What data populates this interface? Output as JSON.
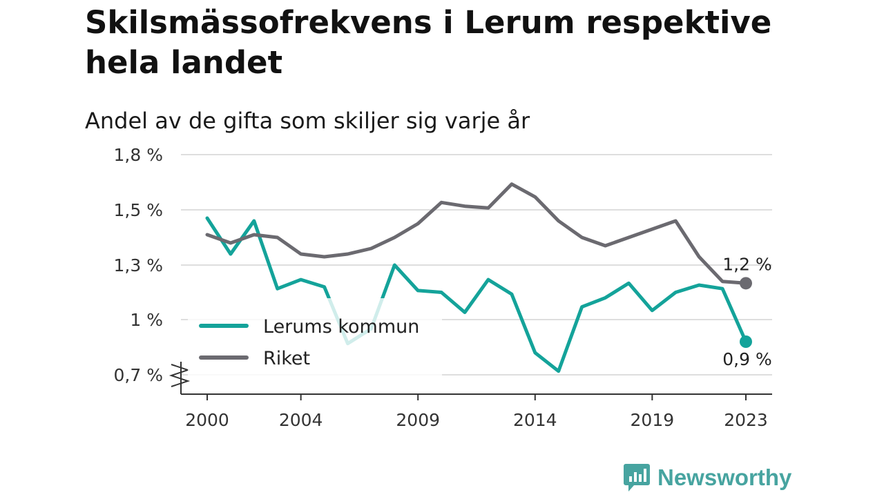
{
  "title": "Skilsmässofrekvens i Lerum respektive hela landet",
  "subtitle": "Andel av de gifta som skiljer sig varje år",
  "brand": {
    "name": "Newsworthy",
    "icon": "newsworthy-logo-icon"
  },
  "colors": {
    "lerum": "#14a39a",
    "riket": "#6b6a70",
    "grid": "#dedede",
    "axis": "#333333",
    "brand": "#47a4a0"
  },
  "chart_data": {
    "type": "line",
    "x": [
      2000,
      2001,
      2002,
      2003,
      2004,
      2005,
      2006,
      2007,
      2008,
      2009,
      2010,
      2011,
      2012,
      2013,
      2014,
      2015,
      2016,
      2017,
      2018,
      2019,
      2020,
      2021,
      2022,
      2023
    ],
    "series": [
      {
        "name": "Lerums kommun",
        "color": "#14a39a",
        "values": [
          1.47,
          1.34,
          1.46,
          1.17,
          1.22,
          1.18,
          0.87,
          0.95,
          1.3,
          1.16,
          1.15,
          1.04,
          1.22,
          1.14,
          0.82,
          0.72,
          1.07,
          1.12,
          1.2,
          1.05,
          1.15,
          1.19,
          1.17,
          0.88
        ],
        "end_label": "0,9 %"
      },
      {
        "name": "Riket",
        "color": "#6b6a70",
        "values": [
          1.41,
          1.38,
          1.41,
          1.4,
          1.34,
          1.33,
          1.34,
          1.36,
          1.4,
          1.45,
          1.54,
          1.52,
          1.51,
          1.64,
          1.57,
          1.46,
          1.4,
          1.37,
          1.4,
          1.43,
          1.46,
          1.33,
          1.21,
          1.2
        ],
        "end_label": "1,2 %"
      }
    ],
    "y_ticks": [
      0.7,
      1.0,
      1.3,
      1.5,
      1.8
    ],
    "y_tick_labels": [
      "0,7 %",
      "1 %",
      "1,3 %",
      "1,5 %",
      "1,8 %"
    ],
    "x_ticks": [
      2000,
      2004,
      2009,
      2014,
      2019,
      2023
    ],
    "x_tick_labels": [
      "2000",
      "2004",
      "2009",
      "2014",
      "2019",
      "2023"
    ],
    "ylim": [
      0.6,
      1.8
    ],
    "axis_break": true,
    "grid": true,
    "legend": {
      "position": "bottom-left",
      "entries": [
        "Lerums kommun",
        "Riket"
      ]
    }
  }
}
